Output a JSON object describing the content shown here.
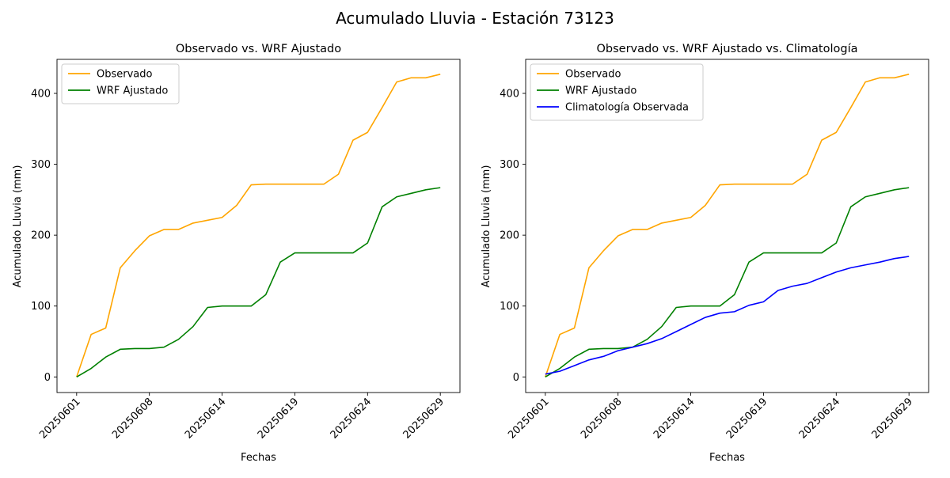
{
  "figure": {
    "suptitle": "Acumulado Lluvia - Estación 73123"
  },
  "chart_data": [
    {
      "type": "line",
      "title": "Observado vs. WRF Ajustado",
      "xlabel": "Fechas",
      "ylabel": "Acumulado Lluvia (mm)",
      "ylim": [
        -22,
        448
      ],
      "xlim": [
        -1.35,
        26.35
      ],
      "x_ticks": [
        0,
        5,
        10,
        15,
        20,
        25
      ],
      "x_tick_labels": [
        "20250601",
        "20250608",
        "20250614",
        "20250619",
        "20250624",
        "20250629"
      ],
      "y_ticks": [
        0,
        100,
        200,
        300,
        400
      ],
      "y_tick_labels": [
        "0",
        "100",
        "200",
        "300",
        "400"
      ],
      "legend_position": "top-left",
      "grid": false,
      "series": [
        {
          "name": "Observado",
          "color": "#FFA500",
          "values": [
            0,
            60,
            69,
            154,
            178,
            199,
            208,
            208,
            217,
            221,
            225,
            242,
            271,
            272,
            272,
            272,
            272,
            272,
            286,
            334,
            345,
            380,
            416,
            422,
            422,
            427
          ]
        },
        {
          "name": "WRF Ajustado",
          "color": "#008000",
          "values": [
            0,
            12,
            28,
            39,
            40,
            40,
            42,
            53,
            71,
            98,
            100,
            100,
            100,
            116,
            162,
            175,
            175,
            175,
            175,
            175,
            189,
            240,
            254,
            259,
            264,
            267
          ]
        }
      ]
    },
    {
      "type": "line",
      "title": "Observado vs. WRF Ajustado vs. Climatología",
      "xlabel": "Fechas",
      "ylabel": "Acumulado Lluvia (mm)",
      "ylim": [
        -22,
        448
      ],
      "xlim": [
        -1.35,
        26.35
      ],
      "x_ticks": [
        0,
        5,
        10,
        15,
        20,
        25
      ],
      "x_tick_labels": [
        "20250601",
        "20250608",
        "20250614",
        "20250619",
        "20250624",
        "20250629"
      ],
      "y_ticks": [
        0,
        100,
        200,
        300,
        400
      ],
      "y_tick_labels": [
        "0",
        "100",
        "200",
        "300",
        "400"
      ],
      "legend_position": "top-left",
      "grid": false,
      "series": [
        {
          "name": "Observado",
          "color": "#FFA500",
          "values": [
            0,
            60,
            69,
            154,
            178,
            199,
            208,
            208,
            217,
            221,
            225,
            242,
            271,
            272,
            272,
            272,
            272,
            272,
            286,
            334,
            345,
            380,
            416,
            422,
            422,
            427
          ]
        },
        {
          "name": "WRF Ajustado",
          "color": "#008000",
          "values": [
            0,
            12,
            28,
            39,
            40,
            40,
            42,
            53,
            71,
            98,
            100,
            100,
            100,
            116,
            162,
            175,
            175,
            175,
            175,
            175,
            189,
            240,
            254,
            259,
            264,
            267
          ]
        },
        {
          "name": "Climatología Observada",
          "color": "#0000FF",
          "values": [
            4,
            8,
            16,
            24,
            29,
            37,
            42,
            47,
            54,
            64,
            74,
            84,
            90,
            92,
            101,
            106,
            122,
            128,
            132,
            140,
            148,
            154,
            158,
            162,
            167,
            170
          ]
        }
      ]
    }
  ]
}
